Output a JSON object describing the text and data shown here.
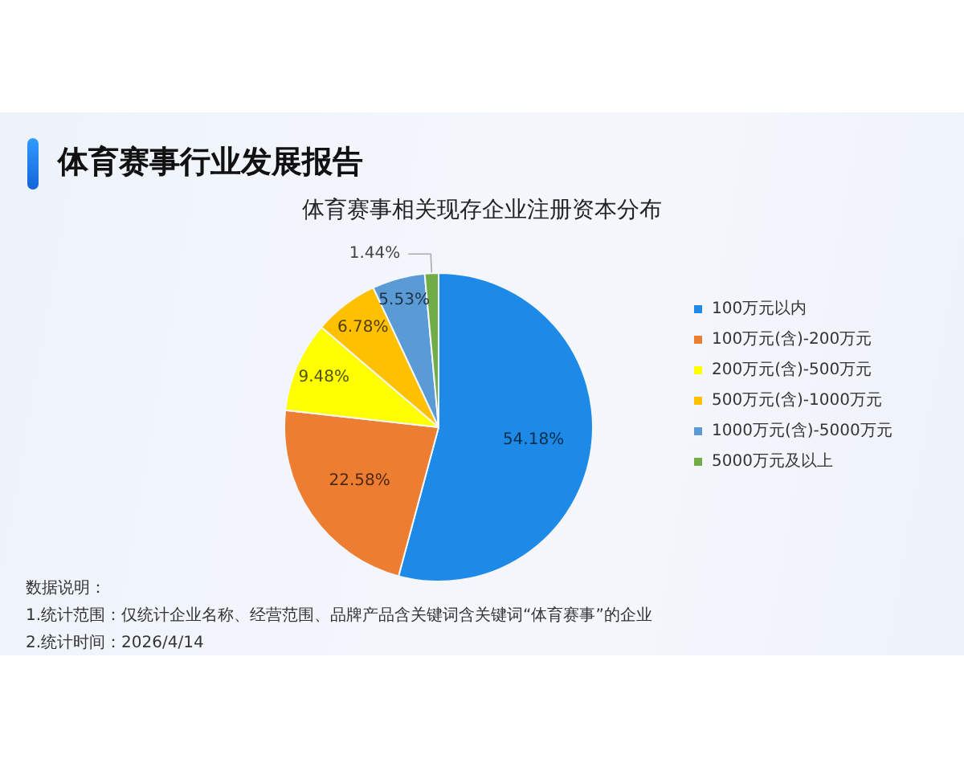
{
  "chart_data": {
    "type": "pie",
    "title": "体育赛事行业发展报告",
    "subtitle": "体育赛事相关现存企业注册资本分布",
    "categories": [
      "100万元以内",
      "100万元(含)-200万元",
      "200万元(含)-500万元",
      "500万元(含)-1000万元",
      "1000万元(含)-5000万元",
      "5000万元及以上"
    ],
    "values": [
      54.18,
      22.58,
      9.48,
      6.78,
      5.53,
      1.44
    ],
    "colors": [
      "#1c8ae6",
      "#ed7d31",
      "#ffff00",
      "#ffc000",
      "#5b9bd5",
      "#70ad47"
    ],
    "value_labels": [
      "54.18%",
      "22.58%",
      "9.48%",
      "6.78%",
      "5.53%",
      "1.44%"
    ],
    "legend": "right",
    "annotations": [
      "数据说明：",
      "1.统计范围：仅统计企业名称、经营范围、品牌产品含关键词含关键词“体育赛事”的企业",
      "2.统计时间：2026/4/14"
    ]
  }
}
